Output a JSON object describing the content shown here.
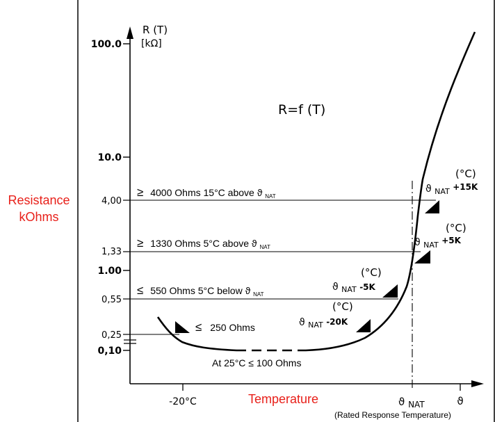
{
  "chart_data": {
    "type": "line",
    "title": "R=f (T)",
    "ylabel_outside": [
      "Resistance",
      "kOhms"
    ],
    "axis_label_y": [
      "R (T)",
      "[kΩ]"
    ],
    "xlabel": "Temperature",
    "y_scale": "log",
    "y_ticks": [
      {
        "value": 100,
        "label": "100.0",
        "bold": true
      },
      {
        "value": 10,
        "label": "10.0",
        "bold": true
      },
      {
        "value": 4,
        "label": "4,00",
        "bold": false
      },
      {
        "value": 1.33,
        "label": "1,33",
        "bold": false
      },
      {
        "value": 1,
        "label": "1.00",
        "bold": true
      },
      {
        "value": 0.55,
        "label": "0,55",
        "bold": false
      },
      {
        "value": 0.25,
        "label": "0,25",
        "bold": false
      },
      {
        "value": 0.1,
        "label": "0,10",
        "bold": true
      }
    ],
    "x_ticks": [
      {
        "key": "minus20",
        "label": "-20°C"
      },
      {
        "key": "nat",
        "label": "ϑ",
        "sub": "NAT"
      },
      {
        "key": "theta",
        "label": "ϑ"
      }
    ],
    "x_note": "(Rated Response Temperature)",
    "thresholds": [
      {
        "value": 4,
        "prefix": "≥",
        "text": "4000 Ohms 15°C above ϑ",
        "sub": "NAT"
      },
      {
        "value": 1.33,
        "prefix": "≥",
        "text": "1330 Ohms 5°C above ϑ",
        "sub": "NAT"
      },
      {
        "value": 0.55,
        "prefix": "≤",
        "text": "550 Ohms 5°C below ϑ",
        "sub": "NAT"
      },
      {
        "value": 0.25,
        "prefix": "≤",
        "text": "250 Ohms",
        "sub": ""
      }
    ],
    "bottom_note": "At 25°C ≤ 100 Ohms",
    "markers": [
      {
        "offset": "+15K",
        "unit": "(°C)",
        "label": "ϑ",
        "sub": "NAT"
      },
      {
        "offset": "+5K",
        "unit": "(°C)",
        "label": "ϑ",
        "sub": "NAT"
      },
      {
        "offset": "-5K",
        "unit": "(°C)",
        "label": "ϑ",
        "sub": "NAT"
      },
      {
        "offset": "-20K",
        "unit": "(°C)",
        "label": "ϑ",
        "sub": "NAT"
      }
    ],
    "grid": false,
    "legend": "none"
  }
}
